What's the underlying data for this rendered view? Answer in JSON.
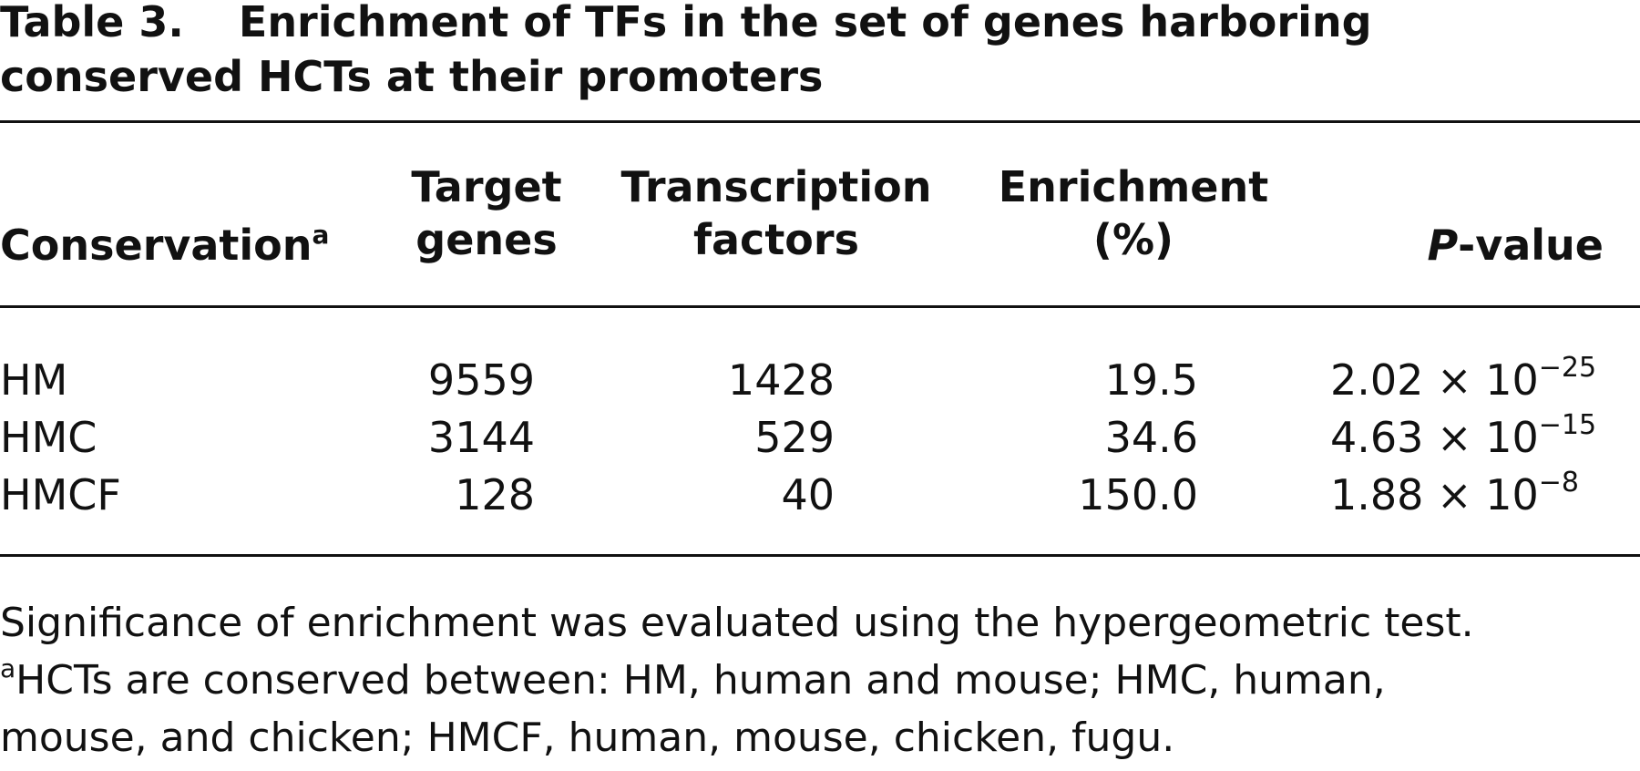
{
  "title": {
    "label": "Table 3.",
    "line1": "Enrichment of TFs in the set of genes harboring",
    "line2": "conserved HCTs at their promoters"
  },
  "header": {
    "conservation": "Conservation",
    "conservation_sup": "a",
    "target_line1": "Target",
    "target_line2": "genes",
    "tf_line1": "Transcription",
    "tf_line2": "factors",
    "enrichment_line1": "Enrichment",
    "enrichment_line2": "(%)",
    "pvalue_italic": "P",
    "pvalue_rest": "-value"
  },
  "rows": [
    {
      "conservation": "HM",
      "target_genes": "9559",
      "transcription_factors": "1428",
      "enrichment": "19.5",
      "pvalue_mantissa": "2.02 × 10",
      "pvalue_exponent": "−25"
    },
    {
      "conservation": "HMC",
      "target_genes": "3144",
      "transcription_factors": "529",
      "enrichment": "34.6",
      "pvalue_mantissa": "4.63 × 10",
      "pvalue_exponent": "−15"
    },
    {
      "conservation": "HMCF",
      "target_genes": "128",
      "transcription_factors": "40",
      "enrichment": "150.0",
      "pvalue_mantissa": "1.88 × 10",
      "pvalue_exponent": "−8"
    }
  ],
  "footnote": {
    "line1": "Significance of enrichment was evaluated using the hypergeometric test.",
    "line2_sup": "a",
    "line2": "HCTs are conserved between: HM, human and mouse; HMC, human,",
    "line3": "mouse, and chicken; HMCF, human, mouse, chicken, fugu."
  }
}
